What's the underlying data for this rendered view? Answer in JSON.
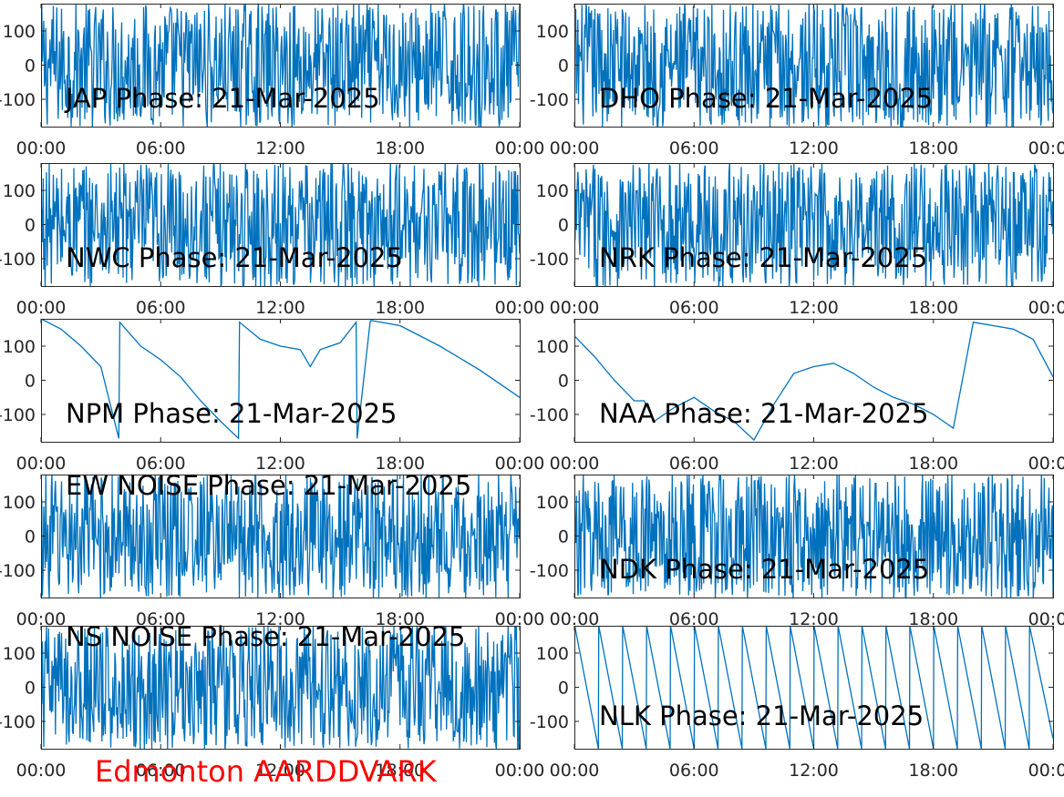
{
  "figure": {
    "footer": "Edmonton AARDDVARK"
  },
  "colors": {
    "line": "#0072bd",
    "axis": "#262626",
    "footer": "#ff0000"
  },
  "chart_data": [
    {
      "type": "line",
      "title": "JAP Phase: 21-Mar-2025",
      "x_ticks": [
        "00:00",
        "06:00",
        "12:00",
        "18:00",
        "00:00"
      ],
      "y_ticks": [
        "100",
        "0",
        "-100"
      ],
      "ylim": [
        -180,
        180
      ],
      "xlim_hours": [
        0,
        24
      ],
      "grid": false,
      "pattern": "noise",
      "series": [
        {
          "color": "#0072bd",
          "x": [
            0,
            2,
            4,
            6,
            8,
            10,
            12,
            14,
            16,
            18,
            20,
            22,
            24
          ],
          "y": [
            0,
            0,
            0,
            0,
            0,
            0,
            0,
            0,
            0,
            0,
            0,
            0,
            0
          ]
        }
      ]
    },
    {
      "type": "line",
      "title": "DHO Phase: 21-Mar-2025",
      "x_ticks": [
        "00:00",
        "06:00",
        "12:00",
        "18:00",
        "00:00"
      ],
      "y_ticks": [
        "100",
        "0",
        "-100"
      ],
      "ylim": [
        -180,
        180
      ],
      "xlim_hours": [
        0,
        24
      ],
      "grid": false,
      "pattern": "noise",
      "series": [
        {
          "color": "#0072bd",
          "x": [
            0,
            2,
            4,
            6,
            8,
            10,
            12,
            14,
            16,
            18,
            20,
            22,
            24
          ],
          "y": [
            0,
            0,
            0,
            0,
            0,
            0,
            0,
            0,
            0,
            0,
            0,
            0,
            0
          ]
        }
      ]
    },
    {
      "type": "line",
      "title": "NWC Phase: 21-Mar-2025",
      "x_ticks": [
        "00:00",
        "06:00",
        "12:00",
        "18:00",
        "00:00"
      ],
      "y_ticks": [
        "100",
        "0",
        "-100"
      ],
      "ylim": [
        -180,
        180
      ],
      "xlim_hours": [
        0,
        24
      ],
      "grid": false,
      "pattern": "noise",
      "series": [
        {
          "color": "#0072bd",
          "x": [
            0,
            2,
            4,
            6,
            8,
            10,
            12,
            14,
            16,
            18,
            20,
            22,
            24
          ],
          "y": [
            0,
            0,
            0,
            0,
            0,
            0,
            0,
            0,
            0,
            0,
            0,
            0,
            0
          ]
        }
      ]
    },
    {
      "type": "line",
      "title": "NRK Phase: 21-Mar-2025",
      "x_ticks": [
        "00:00",
        "06:00",
        "12:00",
        "18:00",
        "00:00"
      ],
      "y_ticks": [
        "100",
        "0",
        "-100"
      ],
      "ylim": [
        -180,
        180
      ],
      "xlim_hours": [
        0,
        24
      ],
      "grid": false,
      "pattern": "noise",
      "series": [
        {
          "color": "#0072bd",
          "x": [
            0,
            2,
            4,
            6,
            8,
            10,
            12,
            14,
            16,
            18,
            20,
            22,
            24
          ],
          "y": [
            0,
            0,
            0,
            0,
            0,
            0,
            0,
            0,
            0,
            0,
            0,
            0,
            0
          ]
        }
      ]
    },
    {
      "type": "line",
      "title": "NPM Phase: 21-Mar-2025",
      "x_ticks": [
        "00:00",
        "06:00",
        "12:00",
        "18:00",
        "00:00"
      ],
      "y_ticks": [
        "100",
        "0",
        "-100"
      ],
      "ylim": [
        -180,
        180
      ],
      "xlim_hours": [
        0,
        24
      ],
      "grid": false,
      "pattern": "wrapped",
      "series": [
        {
          "color": "#0072bd",
          "x": [
            0,
            1,
            2,
            3,
            3.9,
            3.95,
            5,
            6,
            7,
            8,
            9,
            9.9,
            9.95,
            11,
            12,
            13,
            13.5,
            14,
            15,
            15.8,
            15.85,
            16.5,
            16.55,
            18,
            20,
            22,
            24
          ],
          "y": [
            180,
            150,
            100,
            40,
            -170,
            170,
            100,
            60,
            10,
            -60,
            -120,
            -170,
            170,
            120,
            100,
            90,
            40,
            90,
            110,
            170,
            -170,
            170,
            175,
            160,
            100,
            30,
            -50
          ]
        }
      ]
    },
    {
      "type": "line",
      "title": "NAA Phase: 21-Mar-2025",
      "x_ticks": [
        "00:00",
        "06:00",
        "12:00",
        "18:00",
        "00:00"
      ],
      "y_ticks": [
        "100",
        "0",
        "-100"
      ],
      "ylim": [
        -180,
        180
      ],
      "xlim_hours": [
        0,
        24
      ],
      "grid": false,
      "pattern": "mixed",
      "series": [
        {
          "color": "#0072bd",
          "x": [
            0,
            1,
            2,
            3,
            3.5,
            4,
            5,
            6,
            7,
            8,
            9,
            10,
            11,
            12,
            13,
            14,
            15,
            16,
            17,
            18,
            19,
            20,
            21,
            22,
            23,
            24
          ],
          "y": [
            130,
            70,
            0,
            -60,
            -60,
            -120,
            -80,
            -50,
            -90,
            -120,
            -175,
            -70,
            20,
            40,
            50,
            20,
            -20,
            -50,
            -70,
            -100,
            -140,
            170,
            160,
            150,
            120,
            10
          ]
        }
      ]
    },
    {
      "type": "line",
      "title": "EW NOISE Phase: 21-Mar-2025",
      "x_ticks": [
        "00:00",
        "06:00",
        "12:00",
        "18:00",
        "00:00"
      ],
      "y_ticks": [
        "100",
        "0",
        "-100"
      ],
      "ylim": [
        -180,
        180
      ],
      "xlim_hours": [
        0,
        24
      ],
      "grid": false,
      "pattern": "noise",
      "series": [
        {
          "color": "#0072bd",
          "x": [
            0,
            2,
            4,
            6,
            8,
            10,
            12,
            14,
            16,
            18,
            20,
            22,
            24
          ],
          "y": [
            0,
            0,
            0,
            0,
            0,
            0,
            0,
            0,
            0,
            0,
            0,
            0,
            0
          ]
        }
      ]
    },
    {
      "type": "line",
      "title": "NDK Phase: 21-Mar-2025",
      "x_ticks": [
        "00:00",
        "06:00",
        "12:00",
        "18:00",
        "00:00"
      ],
      "y_ticks": [
        "100",
        "0",
        "-100"
      ],
      "ylim": [
        -180,
        180
      ],
      "xlim_hours": [
        0,
        24
      ],
      "grid": false,
      "pattern": "noise",
      "series": [
        {
          "color": "#0072bd",
          "x": [
            0,
            2,
            4,
            6,
            8,
            10,
            12,
            14,
            16,
            18,
            20,
            22,
            24
          ],
          "y": [
            0,
            0,
            0,
            0,
            0,
            0,
            0,
            0,
            0,
            0,
            0,
            0,
            0
          ]
        }
      ]
    },
    {
      "type": "line",
      "title": "NS NOISE Phase: 21-Mar-2025",
      "x_ticks": [
        "00:00",
        "06:00",
        "12:00",
        "18:00",
        "00:00"
      ],
      "y_ticks": [
        "100",
        "0",
        "-100"
      ],
      "ylim": [
        -180,
        180
      ],
      "xlim_hours": [
        0,
        24
      ],
      "grid": false,
      "pattern": "noise",
      "series": [
        {
          "color": "#0072bd",
          "x": [
            0,
            2,
            4,
            6,
            8,
            10,
            12,
            14,
            16,
            18,
            20,
            22,
            24
          ],
          "y": [
            0,
            0,
            0,
            0,
            0,
            0,
            0,
            0,
            0,
            0,
            0,
            0,
            0
          ]
        }
      ]
    },
    {
      "type": "line",
      "title": "NLK Phase: 21-Mar-2025",
      "x_ticks": [
        "00:00",
        "06:00",
        "12:00",
        "18:00",
        "00:00"
      ],
      "y_ticks": [
        "100",
        "0",
        "-100"
      ],
      "ylim": [
        -180,
        180
      ],
      "xlim_hours": [
        0,
        24
      ],
      "grid": false,
      "pattern": "sawtooth",
      "series": [
        {
          "color": "#0072bd",
          "x": [
            0,
            0.02,
            1.2,
            1.22,
            2.4,
            2.42,
            3.6,
            3.62,
            4.8,
            4.82,
            6,
            6.02,
            7.2,
            7.22,
            8.4,
            8.42,
            9.6,
            9.62,
            10.8,
            10.82,
            12,
            12.02,
            13.2,
            13.22,
            14.4,
            14.42,
            15.6,
            15.62,
            16.8,
            16.82,
            18,
            18.02,
            19.2,
            19.22,
            20.4,
            20.42,
            21.6,
            21.62,
            22.8,
            22.82,
            24
          ],
          "y": [
            0,
            180,
            -180,
            180,
            -180,
            180,
            -180,
            180,
            -180,
            180,
            -180,
            180,
            -180,
            180,
            -180,
            180,
            -180,
            180,
            -180,
            180,
            -180,
            180,
            -180,
            180,
            -180,
            180,
            -180,
            180,
            -180,
            180,
            -180,
            180,
            -180,
            180,
            -180,
            180,
            -180,
            180,
            -180,
            180,
            -150
          ]
        }
      ]
    }
  ]
}
